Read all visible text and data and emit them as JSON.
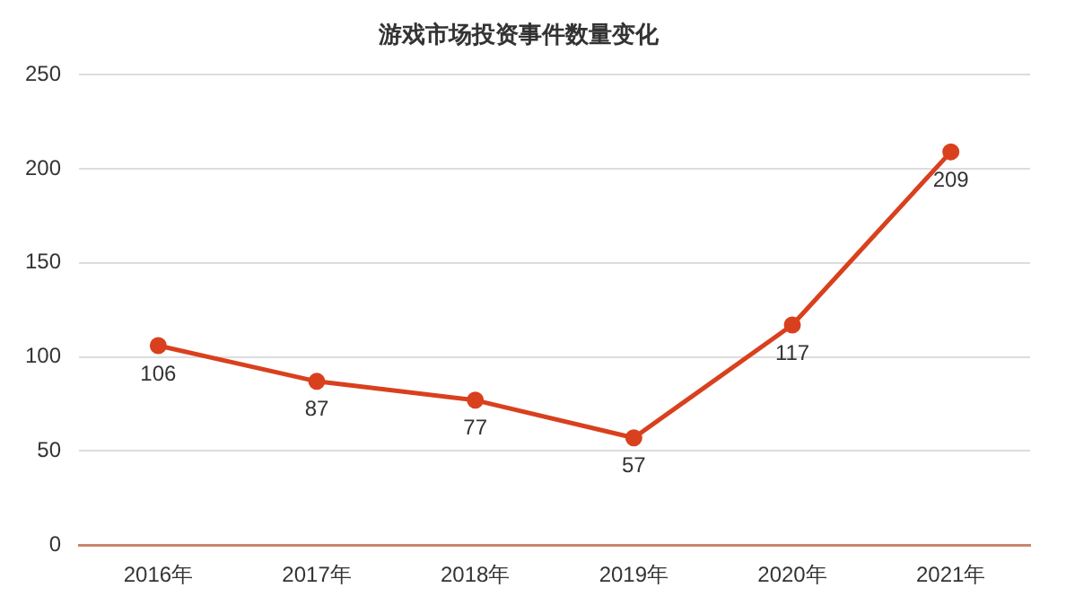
{
  "chart_data": {
    "type": "line",
    "title": "游戏市场投资事件数量变化",
    "categories": [
      "2016年",
      "2017年",
      "2018年",
      "2019年",
      "2020年",
      "2021年"
    ],
    "series": [
      {
        "color": "#d9401e",
        "values": [
          106,
          87,
          77,
          57,
          117,
          209
        ]
      }
    ],
    "ylim": [
      0,
      250
    ],
    "yticks": [
      0,
      50,
      100,
      150,
      200,
      250
    ],
    "grid": "y",
    "legend": false,
    "marker": "circle",
    "line_style": "solid",
    "data_labels": true
  }
}
